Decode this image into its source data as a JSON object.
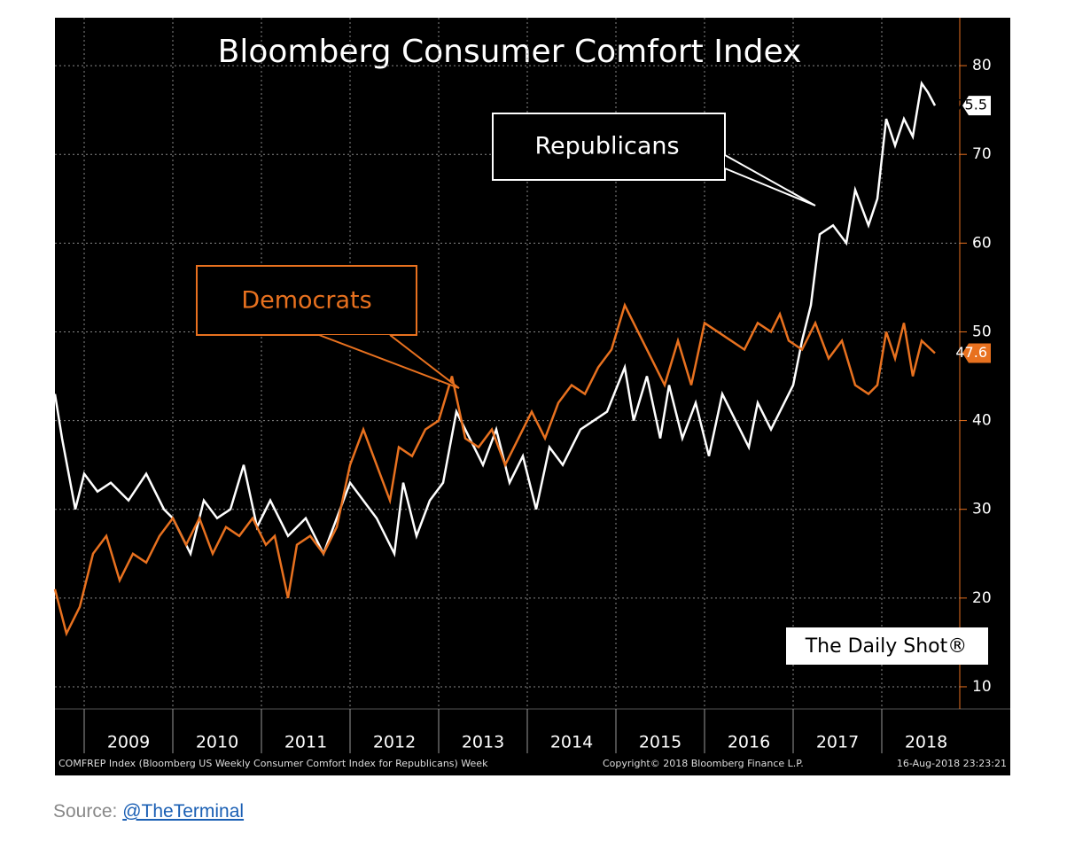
{
  "chart_data": {
    "type": "line",
    "title": "Bloomberg Consumer Comfort Index",
    "xlim": [
      2008.67,
      2018.88
    ],
    "xticks": [
      2009,
      2010,
      2011,
      2012,
      2013,
      2014,
      2015,
      2016,
      2017,
      2018
    ],
    "ylim": [
      7.5,
      85.4
    ],
    "yticks": [
      10,
      20,
      30,
      40,
      50,
      60,
      70,
      80
    ],
    "grid": true,
    "series": [
      {
        "name": "Republicans",
        "color": "#ffffff",
        "x": [
          2008.67,
          2008.75,
          2008.9,
          2009.0,
          2009.15,
          2009.3,
          2009.5,
          2009.7,
          2009.9,
          2010.0,
          2010.2,
          2010.35,
          2010.5,
          2010.65,
          2010.8,
          2010.95,
          2011.1,
          2011.3,
          2011.5,
          2011.7,
          2011.85,
          2012.0,
          2012.15,
          2012.3,
          2012.5,
          2012.6,
          2012.75,
          2012.9,
          2013.05,
          2013.2,
          2013.35,
          2013.5,
          2013.65,
          2013.8,
          2013.95,
          2014.1,
          2014.25,
          2014.4,
          2014.6,
          2014.75,
          2014.9,
          2015.1,
          2015.2,
          2015.35,
          2015.5,
          2015.6,
          2015.75,
          2015.9,
          2016.05,
          2016.2,
          2016.35,
          2016.5,
          2016.6,
          2016.75,
          2016.9,
          2017.0,
          2017.1,
          2017.2,
          2017.3,
          2017.45,
          2017.6,
          2017.7,
          2017.85,
          2017.95,
          2018.05,
          2018.15,
          2018.25,
          2018.35,
          2018.45,
          2018.52,
          2018.6
        ],
        "values": [
          43,
          38,
          30,
          34,
          32,
          33,
          31,
          34,
          30,
          29,
          25,
          31,
          29,
          30,
          35,
          28,
          31,
          27,
          29,
          25,
          29,
          33,
          31,
          29,
          25,
          33,
          27,
          31,
          33,
          41,
          38,
          35,
          39,
          33,
          36,
          30,
          37,
          35,
          39,
          40,
          41,
          46,
          40,
          45,
          38,
          44,
          38,
          42,
          36,
          43,
          40,
          37,
          42,
          39,
          42,
          44,
          49,
          53,
          61,
          62,
          60,
          66,
          62,
          65,
          74,
          71,
          74,
          72,
          78,
          77,
          75.5
        ]
      },
      {
        "name": "Democrats",
        "color": "#e8711f",
        "x": [
          2008.67,
          2008.8,
          2008.95,
          2009.1,
          2009.25,
          2009.4,
          2009.55,
          2009.7,
          2009.85,
          2010.0,
          2010.15,
          2010.3,
          2010.45,
          2010.6,
          2010.75,
          2010.9,
          2011.05,
          2011.15,
          2011.3,
          2011.4,
          2011.55,
          2011.7,
          2011.85,
          2012.0,
          2012.15,
          2012.3,
          2012.45,
          2012.55,
          2012.7,
          2012.85,
          2013.0,
          2013.15,
          2013.3,
          2013.45,
          2013.6,
          2013.75,
          2013.9,
          2014.05,
          2014.2,
          2014.35,
          2014.5,
          2014.65,
          2014.8,
          2014.95,
          2015.1,
          2015.25,
          2015.4,
          2015.55,
          2015.7,
          2015.85,
          2016.0,
          2016.15,
          2016.3,
          2016.45,
          2016.6,
          2016.75,
          2016.85,
          2016.95,
          2017.1,
          2017.25,
          2017.4,
          2017.55,
          2017.7,
          2017.85,
          2017.95,
          2018.05,
          2018.15,
          2018.25,
          2018.35,
          2018.45,
          2018.6
        ],
        "values": [
          21,
          16,
          19,
          25,
          27,
          22,
          25,
          24,
          27,
          29,
          26,
          29,
          25,
          28,
          27,
          29,
          26,
          27,
          20,
          26,
          27,
          25,
          28,
          35,
          39,
          35,
          31,
          37,
          36,
          39,
          40,
          45,
          38,
          37,
          39,
          35,
          38,
          41,
          38,
          42,
          44,
          43,
          46,
          48,
          53,
          50,
          47,
          44,
          49,
          44,
          51,
          50,
          49,
          48,
          51,
          50,
          52,
          49,
          48,
          51,
          47,
          49,
          44,
          43,
          44,
          50,
          47,
          51,
          45,
          49,
          47.6
        ]
      }
    ],
    "annotations": [
      "The Daily Shot®"
    ],
    "footer": [
      "COMFREP Index (Bloomberg US Weekly Consumer Comfort Index for Republicans) Week",
      "Copyright© 2018 Bloomberg Finance L.P.",
      "16-Aug-2018 23:23:21"
    ]
  },
  "source": {
    "label": "Source:",
    "link": "@TheTerminal"
  }
}
